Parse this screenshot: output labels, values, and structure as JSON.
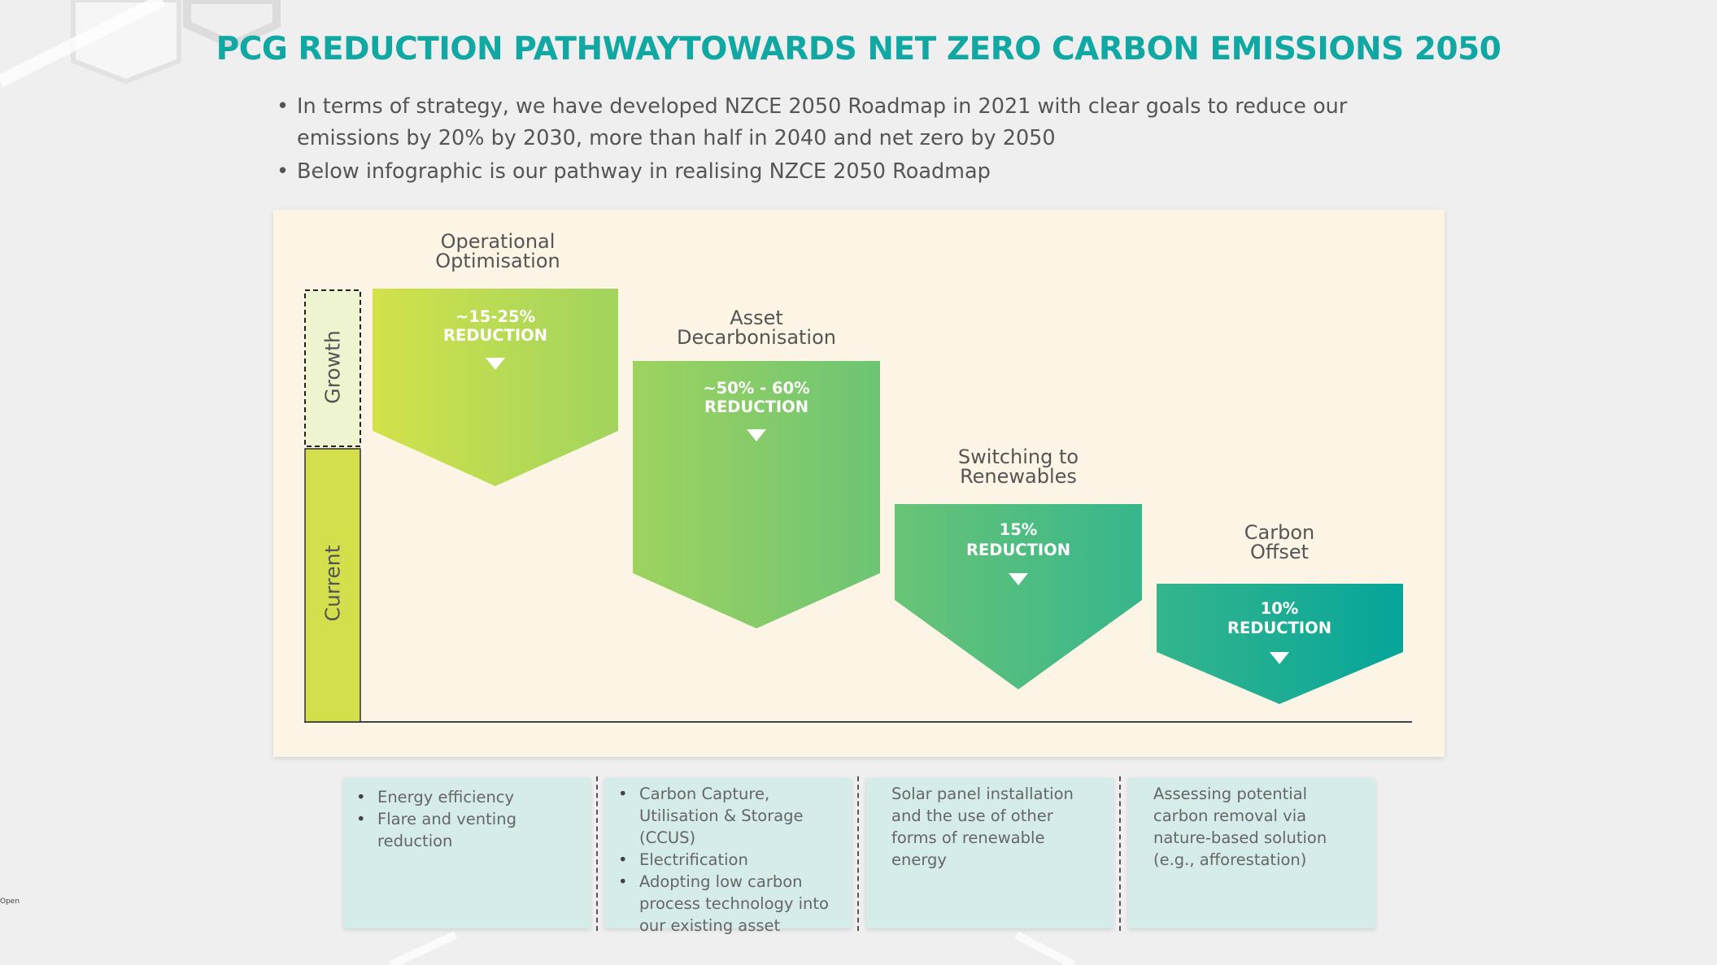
{
  "title": "PCG REDUCTION PATHWAYTOWARDS NET ZERO CARBON EMISSIONS 2050",
  "bullets": [
    "In terms of strategy, we have developed NZCE 2050 Roadmap in 2021 with clear goals to reduce our emissions by 20% by 2030, more than half in 2040 and net zero by 2050",
    "Below infographic is our pathway in realising NZCE 2050 Roadmap"
  ],
  "axis": {
    "growth": "Growth",
    "current": "Current"
  },
  "steps": [
    {
      "title_line1": "Operational",
      "title_line2": "Optimisation",
      "pct": "~15-25%",
      "reduction": "REDUCTION"
    },
    {
      "title_line1": "Asset",
      "title_line2": "Decarbonisation",
      "pct": "~50% - 60%",
      "reduction": "REDUCTION"
    },
    {
      "title_line1": "Switching to",
      "title_line2": "Renewables",
      "pct": "15%",
      "reduction": "REDUCTION"
    },
    {
      "title_line1": "Carbon",
      "title_line2": "Offset",
      "pct": "10%",
      "reduction": "REDUCTION"
    }
  ],
  "cards": [
    {
      "items": [
        "Energy efficiency",
        "Flare and venting reduction"
      ]
    },
    {
      "items": [
        "Carbon Capture, Utilisation & Storage (CCUS)",
        "Electrification",
        "Adopting low carbon process technology into our existing asset"
      ]
    },
    {
      "text": "Solar panel installation  and the use of other forms of renewable energy"
    },
    {
      "text": "Assessing potential carbon removal via nature-based solution (e.g., afforestation)"
    }
  ],
  "footer_tag": "Open",
  "colors": {
    "title": "#11a8a3",
    "panel": "#fcf5e5",
    "current_bar": "#d3e04b",
    "growth_box": "#eef4cf",
    "gradient_start": "#d2e24a",
    "gradient_end": "#06a59a",
    "card": "#d5ecea"
  }
}
